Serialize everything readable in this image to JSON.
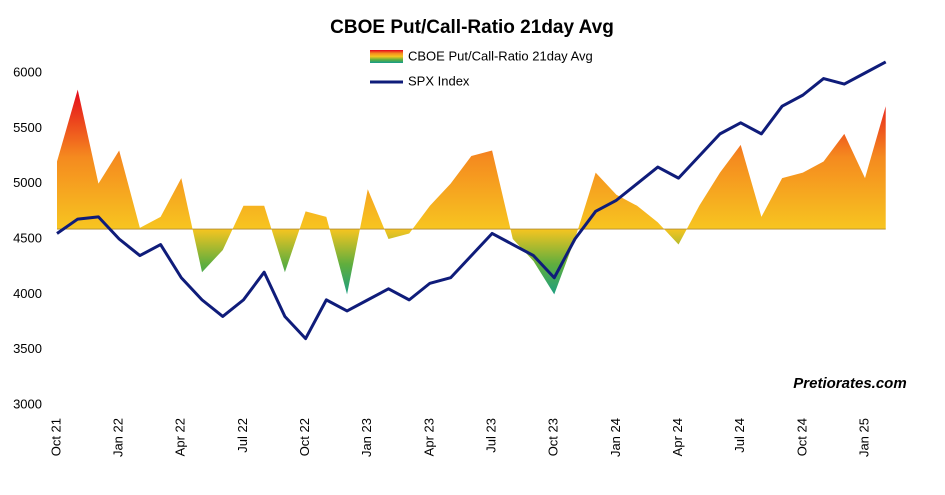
{
  "chart_data": {
    "type": "line",
    "title": "CBOE Put/Call-Ratio 21day Avg",
    "watermark": "Pretiorates.com",
    "categories": [
      "Oct 21",
      null,
      null,
      "Jan 22",
      null,
      null,
      "Apr 22",
      null,
      null,
      "Jul 22",
      null,
      null,
      "Oct 22",
      null,
      null,
      "Jan 23",
      null,
      null,
      "Apr 23",
      null,
      null,
      "Jul 23",
      null,
      null,
      "Oct 23",
      null,
      null,
      "Jan 24",
      null,
      null,
      "Apr 24",
      null,
      null,
      "Jul 24",
      null,
      null,
      "Oct 24",
      null,
      null,
      "Jan 25",
      null
    ],
    "ylim": [
      3000,
      6000
    ],
    "yticks": [
      3000,
      3500,
      4000,
      4500,
      5000,
      5500,
      6000
    ],
    "grid": false,
    "series": [
      {
        "name": "CBOE Put/Call-Ratio 21day Avg",
        "kind": "area",
        "baseline": 4590,
        "colors": [
          "#e3001b",
          "#f58a1f",
          "#f7c520",
          "#5fae3e",
          "#129c8c"
        ],
        "values": [
          5200,
          5850,
          5000,
          5300,
          4600,
          4700,
          5050,
          4200,
          4400,
          4800,
          4800,
          4200,
          4750,
          4700,
          4000,
          4950,
          4500,
          4550,
          4800,
          5000,
          5250,
          5300,
          4500,
          4300,
          4000,
          4500,
          5100,
          4900,
          4800,
          4650,
          4450,
          4800,
          5100,
          5350,
          4700,
          5050,
          5100,
          5200,
          5450,
          5050,
          5700
        ]
      },
      {
        "name": "SPX Index",
        "kind": "line",
        "color": "#0f1c7a",
        "values": [
          4550,
          4680,
          4700,
          4500,
          4350,
          4450,
          4150,
          3950,
          3800,
          3950,
          4200,
          3800,
          3600,
          3950,
          3850,
          3950,
          4050,
          3950,
          4100,
          4150,
          4350,
          4550,
          4450,
          4350,
          4150,
          4500,
          4750,
          4850,
          5000,
          5150,
          5050,
          5250,
          5450,
          5550,
          5450,
          5700,
          5800,
          5950,
          5900,
          6000,
          6100
        ]
      }
    ]
  }
}
